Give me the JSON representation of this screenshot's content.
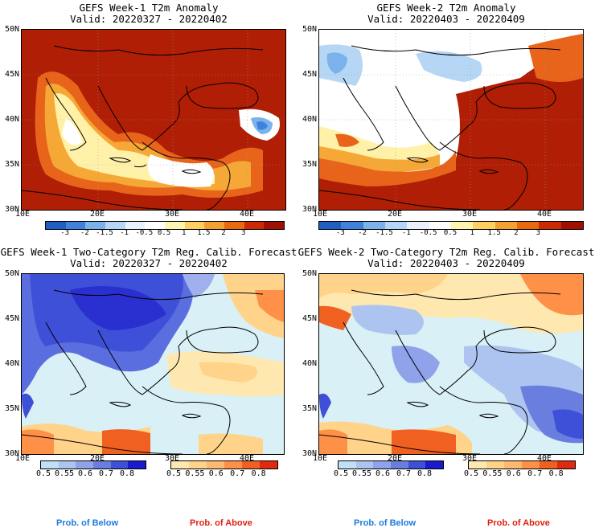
{
  "colors": {
    "anomaly_scale": [
      "#1f5fc4",
      "#3f82dc",
      "#7bb2ec",
      "#b6d6f6",
      "#e8f2fc",
      "#ffffff",
      "#fff5b0",
      "#ffd060",
      "#f5a030",
      "#e86a10",
      "#cc2a05",
      "#a01000"
    ],
    "below_scale": [
      "#bfe0f5",
      "#aec4f0",
      "#8fa2ea",
      "#6a7ee0",
      "#3f50d8",
      "#1a1ad0"
    ],
    "above_scale": [
      "#ffe8b0",
      "#ffd48a",
      "#ffb870",
      "#ff9048",
      "#f06020",
      "#e02a10"
    ],
    "below_label": "#1e7ae0",
    "above_label": "#e02010",
    "land_line": "#000000",
    "grid": "#aaaaaa"
  },
  "panels": [
    {
      "id": "p1",
      "title": "GEFS Week-1 T2m Anomaly",
      "valid": "Valid: 20220327 - 20220402",
      "kind": "anomaly",
      "y_labels": [
        "50N",
        "45N",
        "40N",
        "35N",
        "30N"
      ],
      "x_labels": [
        "10E",
        "20E",
        "30E",
        "40E"
      ],
      "colorbar_labels": [
        "-3",
        "-2",
        "-1.5",
        "-1",
        "-0.5",
        "0.5",
        "1",
        "1.5",
        "2",
        "3"
      ]
    },
    {
      "id": "p2",
      "title": "GEFS Week-2 T2m Anomaly",
      "valid": "Valid: 20220403 - 20220409",
      "kind": "anomaly",
      "y_labels": [
        "50N",
        "45N",
        "40N",
        "35N",
        "30N"
      ],
      "x_labels": [
        "10E",
        "20E",
        "30E",
        "40E"
      ],
      "colorbar_labels": [
        "-3",
        "-2",
        "-1.5",
        "-1",
        "-0.5",
        "0.5",
        "1",
        "1.5",
        "2",
        "3"
      ]
    },
    {
      "id": "p3",
      "title": "GEFS Week-1 Two-Category T2m Reg. Calib. Forecast",
      "valid": "Valid: 20220327 - 20220402",
      "kind": "probability",
      "y_labels": [
        "50N",
        "45N",
        "40N",
        "35N",
        "30N"
      ],
      "x_labels": [
        "10E",
        "20E",
        "30E",
        "40E"
      ],
      "below_ticks": [
        "0.5",
        "0.55",
        "0.6",
        "0.7",
        "0.8"
      ],
      "above_ticks": [
        "0.5",
        "0.55",
        "0.6",
        "0.7",
        "0.8"
      ],
      "below_label": "Prob. of Below",
      "above_label": "Prob. of Above"
    },
    {
      "id": "p4",
      "title": "GEFS Week-2 Two-Category T2m Reg. Calib. Forecast",
      "valid": "Valid: 20220403 - 20220409",
      "kind": "probability",
      "y_labels": [
        "50N",
        "45N",
        "40N",
        "35N",
        "30N"
      ],
      "x_labels": [
        "10E",
        "20E",
        "30E",
        "40E"
      ],
      "below_ticks": [
        "0.5",
        "0.55",
        "0.6",
        "0.7",
        "0.8"
      ],
      "above_ticks": [
        "0.5",
        "0.55",
        "0.6",
        "0.7",
        "0.8"
      ],
      "below_label": "Prob. of Below",
      "above_label": "Prob. of Above"
    }
  ]
}
